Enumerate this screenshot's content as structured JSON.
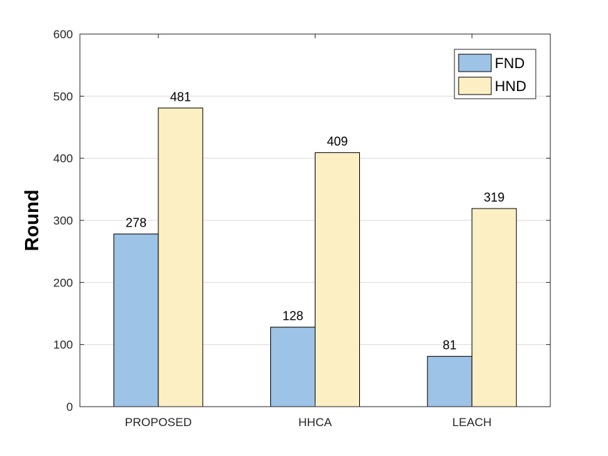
{
  "chart_data": {
    "type": "bar",
    "categories": [
      "PROPOSED",
      "HHCA",
      "LEACH"
    ],
    "series": [
      {
        "name": "FND",
        "values": [
          278,
          128,
          81
        ],
        "color": "#9dc3e6"
      },
      {
        "name": "HND",
        "values": [
          481,
          409,
          319
        ],
        "color": "#fdefc4"
      }
    ],
    "title": "",
    "xlabel": "",
    "ylabel": "Round",
    "ylim": [
      0,
      600
    ],
    "yticks": [
      0,
      100,
      200,
      300,
      400,
      500,
      600
    ],
    "grid": true,
    "legend_position": "top-right",
    "data_labels": true
  }
}
